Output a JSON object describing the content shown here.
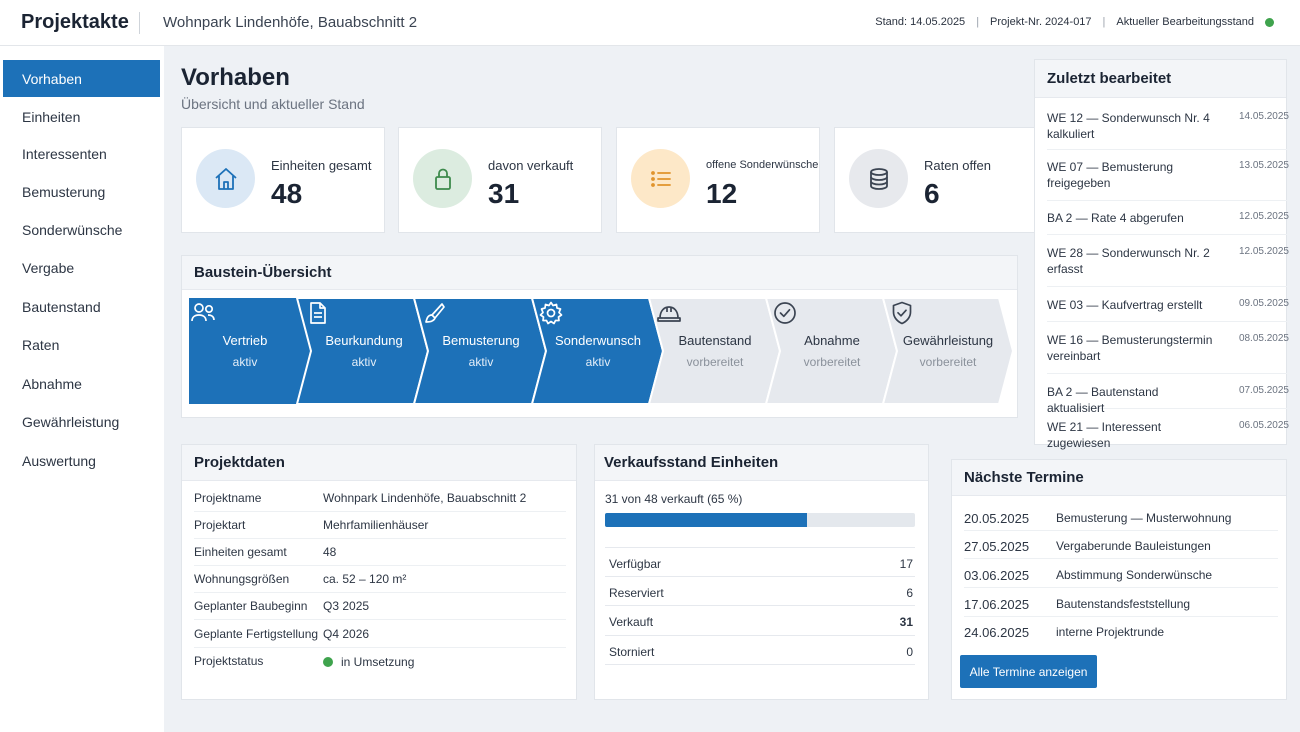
{
  "header": {
    "app_title": "Projektakte",
    "project_name": "Wohnpark Lindenhöfe, Bauabschnitt 2",
    "stand": "Stand: 14.05.2025",
    "project_no": "Projekt-Nr. 2024-017",
    "status_text": "Aktueller Bearbeitungsstand"
  },
  "sidebar": {
    "items": [
      {
        "label": "Vorhaben",
        "active": true
      },
      {
        "label": "Einheiten"
      },
      {
        "label": "Interessenten"
      },
      {
        "label": "Bemusterung"
      },
      {
        "label": "Sonderwünsche"
      },
      {
        "label": "Vergabe"
      },
      {
        "label": "Bautenstand"
      },
      {
        "label": "Raten"
      },
      {
        "label": "Abnahme"
      },
      {
        "label": "Gewährleistung"
      },
      {
        "label": "Auswertung"
      }
    ]
  },
  "main": {
    "title": "Vorhaben",
    "subtitle": "Übersicht und aktueller Stand"
  },
  "kpis": [
    {
      "label": "Einheiten gesamt",
      "value": "48",
      "icon": "house-icon"
    },
    {
      "label": "davon verkauft",
      "value": "31",
      "icon": "lock-icon"
    },
    {
      "label": "offene Sonderwünsche",
      "value": "12",
      "icon": "list-icon"
    },
    {
      "label": "Raten offen",
      "value": "6",
      "icon": "coins-icon"
    }
  ],
  "stages": {
    "title": "Baustein-Übersicht",
    "items": [
      {
        "name": "Vertrieb",
        "status": "aktiv",
        "icon": "users-icon"
      },
      {
        "name": "Beurkundung",
        "status": "aktiv",
        "icon": "document-icon"
      },
      {
        "name": "Bemusterung",
        "status": "aktiv",
        "icon": "brush-icon"
      },
      {
        "name": "Sonderwunsch",
        "status": "aktiv",
        "icon": "gear-icon"
      },
      {
        "name": "Bautenstand",
        "status": "vorbereitet",
        "icon": "hardhat-icon"
      },
      {
        "name": "Abnahme",
        "status": "vorbereitet",
        "icon": "check-circle-icon"
      },
      {
        "name": "Gewährleistung",
        "status": "vorbereitet",
        "icon": "shield-check-icon"
      }
    ]
  },
  "projektdaten": {
    "title": "Projektdaten",
    "rows": [
      {
        "k": "Projektname",
        "v": "Wohnpark Lindenhöfe, Bauabschnitt 2"
      },
      {
        "k": "Projektart",
        "v": "Mehrfamilienhäuser"
      },
      {
        "k": "Einheiten gesamt",
        "v": "48"
      },
      {
        "k": "Wohnungsgrößen",
        "v": "ca. 52 – 120 m²"
      },
      {
        "k": "Geplanter Baubeginn",
        "v": "Q3 2025"
      },
      {
        "k": "Geplante Fertigstellung",
        "v": "Q4 2026"
      },
      {
        "k": "Projektstatus",
        "v": "in Umsetzung"
      }
    ]
  },
  "verkauf": {
    "title": "Verkaufsstand Einheiten",
    "summary": "31 von 48 verkauft (65 %)",
    "progress": 0.65,
    "rows": [
      {
        "k": "Verfügbar",
        "v": "17"
      },
      {
        "k": "Reserviert",
        "v": "6"
      },
      {
        "k": "Verkauft",
        "v": "31"
      },
      {
        "k": "Storniert",
        "v": "0"
      }
    ]
  },
  "recent": {
    "title": "Zuletzt bearbeitet",
    "items": [
      {
        "text": "WE 12 — Sonderwunsch Nr. 4 kalkuliert",
        "date": "14.05.2025"
      },
      {
        "text": "WE 07 — Bemusterung freigegeben",
        "date": "13.05.2025"
      },
      {
        "text": "BA 2 — Rate 4 abgerufen",
        "date": "12.05.2025"
      },
      {
        "text": "WE 28 — Sonderwunsch Nr. 2 erfasst",
        "date": "12.05.2025"
      },
      {
        "text": "WE 03 — Kaufvertrag erstellt",
        "date": "09.05.2025"
      },
      {
        "text": "WE 16 — Bemusterungstermin vereinbart",
        "date": "08.05.2025"
      },
      {
        "text": "BA 2 — Bautenstand aktualisiert",
        "date": "07.05.2025"
      },
      {
        "text": "WE 21 — Interessent zugewiesen",
        "date": "06.05.2025"
      }
    ]
  },
  "termine": {
    "title": "Nächste Termine",
    "items": [
      {
        "date": "20.05.2025",
        "text": "Bemusterung — Musterwohnung"
      },
      {
        "date": "27.05.2025",
        "text": "Vergaberunde Bauleistungen"
      },
      {
        "date": "03.06.2025",
        "text": "Abstimmung Sonderwünsche"
      },
      {
        "date": "17.06.2025",
        "text": "Bautenstandsfeststellung"
      },
      {
        "date": "24.06.2025",
        "text": "interne Projektrunde"
      }
    ],
    "button_label": "Alle Termine anzeigen"
  },
  "colors": {
    "accent": "#1d71b8",
    "active_status": "#3fa34d",
    "stage_inactive": "#e6e9ee"
  }
}
